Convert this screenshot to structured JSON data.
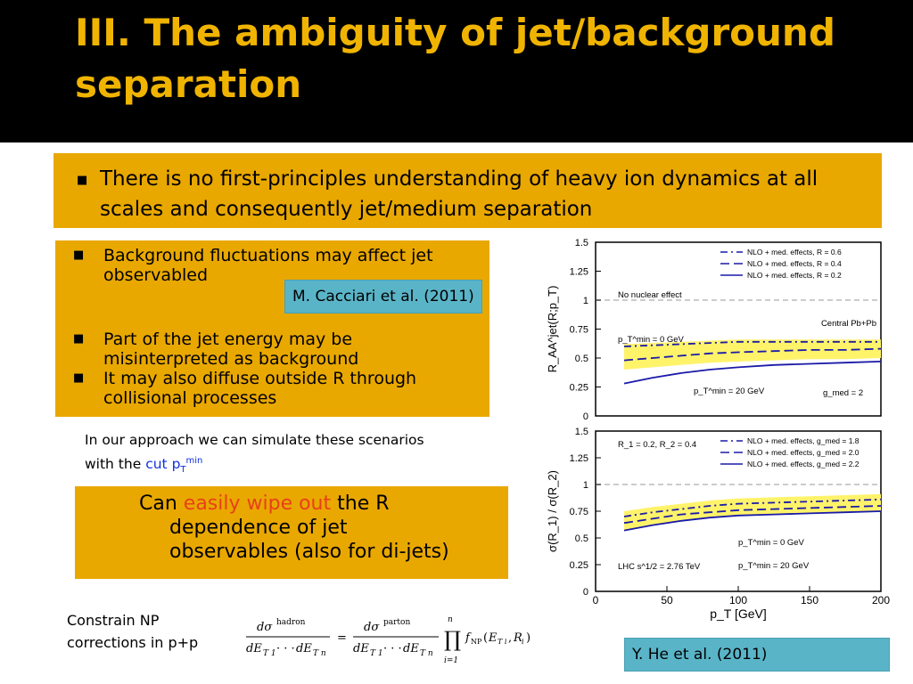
{
  "title": "III. The ambiguity of jet/background separation",
  "top_bullet": "There is no first-principles understanding of heavy ion dynamics at all scales and consequently jet/medium separation",
  "left_bullets": [
    "Background fluctuations may affect jet observabled",
    "Part of the jet energy may be misinterpreted as background",
    "It may also  diffuse outside R through collisional processes"
  ],
  "cacciari_label": "M. Cacciari et al.  (2011)",
  "approach_text": {
    "line1": "In our approach we can simulate these scenarios",
    "line2_prefix": "with the ",
    "cut": "cut",
    "pt": "p",
    "pt_sub": "T",
    "pt_sup": "min"
  },
  "wipe_box": {
    "can": "Can ",
    "highlight": "easily wipe out",
    "rest1": " the R",
    "rest2": "dependence of jet",
    "rest3": "observables (also for di-jets)"
  },
  "constrain_text": {
    "line1": "Constrain NP",
    "line2": "corrections in p+p"
  },
  "he_label": "Y. He et al.  (2011)",
  "colors": {
    "title": "#f0b400",
    "box": "#e9a800",
    "highlight": "#e8401a",
    "cut": "#1030e0",
    "label_bg": "#5ab4c8"
  },
  "chart_data": [
    {
      "type": "line",
      "ylabel": "R_AA^jet(R;p_T)",
      "ylim": [
        0,
        1.5
      ],
      "yticks": [
        "0",
        "0.25",
        "0.5",
        "0.75",
        "1",
        "1.25",
        "1.5"
      ],
      "xlim": [
        0,
        200
      ],
      "annotations": [
        "No nuclear effect",
        "Central Pb+Pb",
        "p_T^min = 0 GeV",
        "p_T^min = 20 GeV",
        "g_med = 2"
      ],
      "legend": [
        "NLO + med. effects, R = 0.6",
        "NLO + med. effects, R = 0.4",
        "NLO + med. effects, R = 0.2"
      ],
      "series": [
        {
          "name": "NLO + med. effects, R = 0.6",
          "x": [
            20,
            40,
            60,
            80,
            100,
            125,
            150,
            175,
            200
          ],
          "values": [
            0.6,
            0.61,
            0.62,
            0.63,
            0.64,
            0.64,
            0.64,
            0.64,
            0.64
          ]
        },
        {
          "name": "NLO + med. effects, R = 0.4",
          "x": [
            20,
            40,
            60,
            80,
            100,
            125,
            150,
            175,
            200
          ],
          "values": [
            0.48,
            0.5,
            0.52,
            0.54,
            0.55,
            0.56,
            0.57,
            0.57,
            0.58
          ]
        },
        {
          "name": "NLO + med. effects, R = 0.2",
          "x": [
            20,
            40,
            60,
            80,
            100,
            125,
            150,
            175,
            200
          ],
          "values": [
            0.28,
            0.33,
            0.37,
            0.4,
            0.42,
            0.44,
            0.45,
            0.46,
            0.47
          ]
        }
      ]
    },
    {
      "type": "line",
      "ylabel": "σ(R_1) / σ(R_2)",
      "xlabel": "p_T [GeV]",
      "ylim": [
        0,
        1.5
      ],
      "yticks": [
        "0",
        "0.25",
        "0.5",
        "0.75",
        "1",
        "1.25",
        "1.5"
      ],
      "xlim": [
        0,
        200
      ],
      "xticks": [
        "0",
        "50",
        "100",
        "150",
        "200"
      ],
      "annotations": [
        "R_1 = 0.2, R_2 = 0.4",
        "p_T^min = 0 GeV",
        "p_T^min = 20 GeV",
        "LHC s^1/2 = 2.76 TeV"
      ],
      "legend": [
        "NLO + med. effects, g_med = 1.8",
        "NLO + med. effects, g_med = 2.0",
        "NLO + med. effects, g_med = 2.2"
      ],
      "series": [
        {
          "name": "NLO + med. effects, g_med = 1.8",
          "x": [
            20,
            40,
            60,
            80,
            100,
            125,
            150,
            175,
            200
          ],
          "values": [
            0.7,
            0.74,
            0.77,
            0.8,
            0.82,
            0.83,
            0.84,
            0.85,
            0.86
          ]
        },
        {
          "name": "NLO + med. effects, g_med = 2.0",
          "x": [
            20,
            40,
            60,
            80,
            100,
            125,
            150,
            175,
            200
          ],
          "values": [
            0.64,
            0.68,
            0.72,
            0.74,
            0.76,
            0.77,
            0.78,
            0.79,
            0.8
          ]
        },
        {
          "name": "NLO + med. effects, g_med = 2.2",
          "x": [
            20,
            40,
            60,
            80,
            100,
            125,
            150,
            175,
            200
          ],
          "values": [
            0.57,
            0.62,
            0.66,
            0.69,
            0.71,
            0.72,
            0.73,
            0.74,
            0.75
          ]
        }
      ]
    }
  ]
}
